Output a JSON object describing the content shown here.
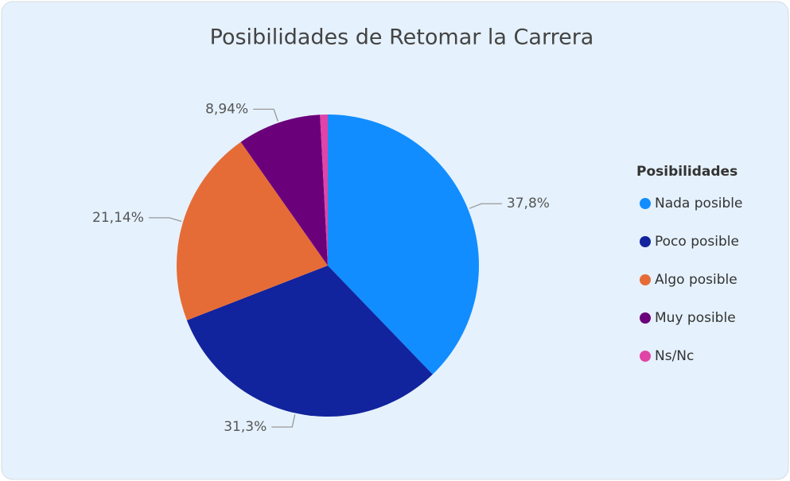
{
  "chart_data": {
    "type": "pie",
    "title": "Posibilidades de Retomar la Carrera",
    "legend_title": "Posibilidades",
    "categories": [
      "Nada posible",
      "Poco posible",
      "Algo posible",
      "Muy posible",
      "Ns/Nc"
    ],
    "values": [
      37.8,
      31.3,
      21.14,
      8.94,
      0.82
    ],
    "value_labels": [
      "37,8%",
      "31,3%",
      "21,14%",
      "8,94%",
      null
    ],
    "colors": [
      "#118DFF",
      "#12239E",
      "#E66C37",
      "#6B007B",
      "#E044A7"
    ],
    "legend_position": "right"
  }
}
